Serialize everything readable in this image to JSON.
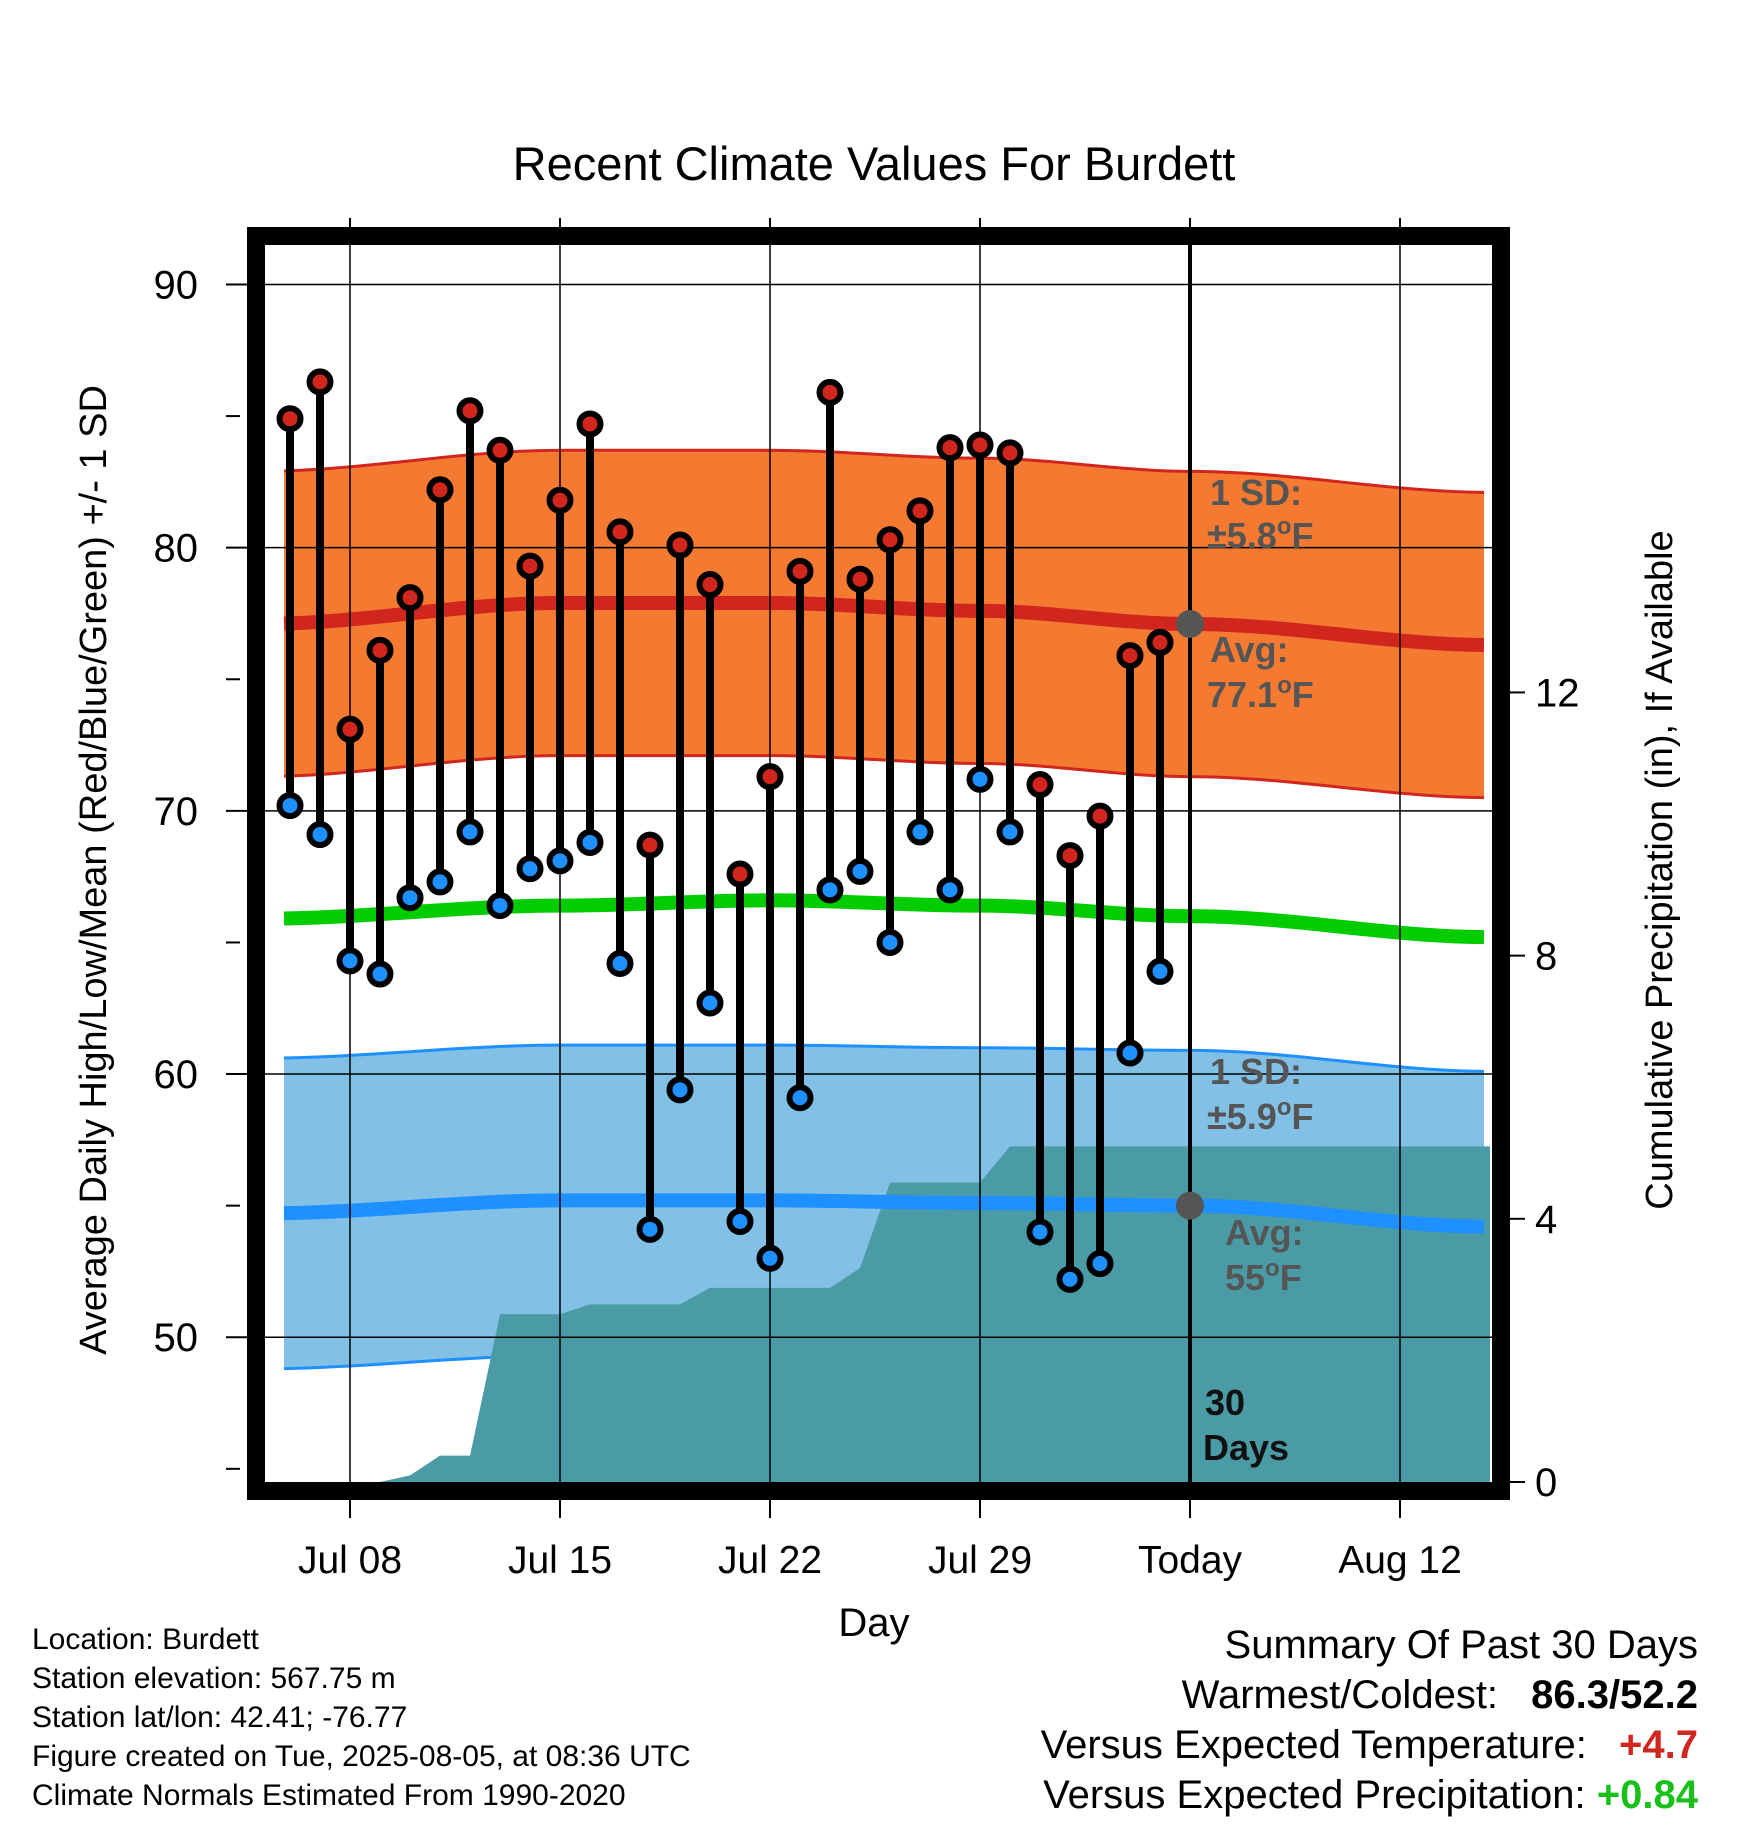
{
  "chart_data": {
    "type": "line",
    "title": "Recent Climate Values For Burdett",
    "xlabel": "Day",
    "ylabel": "Average Daily High/Low/Mean (Red/Blue/Green) +/- 1 SD",
    "y2label": "Cumulative Precipitation (in), If Available",
    "x_ticks": [
      "Jul 08",
      "Jul 15",
      "Jul 22",
      "Jul 29",
      "Today",
      "Aug 12"
    ],
    "x_range_days": [
      -30.2,
      10.0
    ],
    "x_tick_days": [
      -28,
      -21,
      -14,
      -7,
      0,
      7
    ],
    "ylim": [
      44.5,
      91.5
    ],
    "y_ticks": [
      50,
      60,
      70,
      80,
      90
    ],
    "y2lim": [
      0,
      18.8
    ],
    "y2_ticks": [
      0,
      4,
      8,
      12
    ],
    "grid": true,
    "today_marker": "30 Days",
    "series": [
      {
        "name": "High",
        "color": "#d0261e",
        "days": [
          -30,
          -29,
          -28,
          -27,
          -26,
          -25,
          -24,
          -23,
          -22,
          -21,
          -20,
          -19,
          -18,
          -17,
          -16,
          -15,
          -14,
          -13,
          -12,
          -11,
          -10,
          -9,
          -8,
          -7,
          -6,
          -5,
          -4,
          -3,
          -2,
          -1
        ],
        "values": [
          84.9,
          86.3,
          73.1,
          76.1,
          78.1,
          82.2,
          85.2,
          83.7,
          79.3,
          81.8,
          84.7,
          80.6,
          68.7,
          80.1,
          78.6,
          67.6,
          71.3,
          79.1,
          85.9,
          78.8,
          80.3,
          81.4,
          83.8,
          83.9,
          83.6,
          71.0,
          68.3,
          69.8,
          75.9,
          76.4
        ]
      },
      {
        "name": "Low",
        "color": "#1e90ff",
        "days": [
          -30,
          -29,
          -28,
          -27,
          -26,
          -25,
          -24,
          -23,
          -22,
          -21,
          -20,
          -19,
          -18,
          -17,
          -16,
          -15,
          -14,
          -13,
          -12,
          -11,
          -10,
          -9,
          -8,
          -7,
          -6,
          -5,
          -4,
          -3,
          -2,
          -1
        ],
        "values": [
          70.2,
          69.1,
          64.3,
          63.8,
          66.7,
          67.3,
          69.2,
          66.4,
          67.8,
          68.1,
          68.8,
          64.2,
          54.1,
          59.4,
          62.7,
          54.4,
          53.0,
          59.1,
          67.0,
          67.7,
          65.0,
          69.2,
          67.0,
          71.2,
          69.2,
          54.0,
          52.2,
          52.8,
          60.8,
          63.9
        ]
      },
      {
        "name": "Normal High",
        "color": "#d0261e",
        "days": [
          -31,
          -21,
          -14,
          -7,
          0,
          10
        ],
        "values": [
          77.1,
          77.9,
          77.9,
          77.6,
          77.1,
          76.3
        ],
        "sd": 5.8
      },
      {
        "name": "Normal Low",
        "color": "#1e90ff",
        "days": [
          -31,
          -21,
          -14,
          -7,
          0,
          10
        ],
        "values": [
          54.7,
          55.2,
          55.2,
          55.1,
          55.0,
          54.2
        ],
        "sd": 5.9
      },
      {
        "name": "Normal Mean",
        "color": "#00cc00",
        "days": [
          -31,
          -21,
          -14,
          -7,
          0,
          10
        ],
        "values": [
          65.9,
          66.4,
          66.6,
          66.4,
          66.0,
          65.2
        ]
      },
      {
        "name": "Cumulative Precipitation",
        "color": "#4a9ba6",
        "days": [
          -27,
          -26,
          -25,
          -24,
          -23,
          -22,
          -21,
          -20,
          -19,
          -18,
          -17,
          -16,
          -15,
          -14,
          -13,
          -12,
          -11,
          -10,
          -9,
          -8,
          -7,
          -6,
          -5,
          -4,
          -3,
          -2,
          -1,
          0,
          10
        ],
        "values": [
          0,
          0.1,
          0.4,
          0.4,
          2.55,
          2.55,
          2.55,
          2.7,
          2.7,
          2.7,
          2.7,
          2.95,
          2.95,
          2.95,
          2.95,
          2.95,
          3.25,
          4.55,
          4.55,
          4.55,
          4.55,
          5.1,
          5.1,
          5.1,
          5.1,
          5.1,
          5.1,
          5.1,
          5.1
        ]
      }
    ],
    "annotations": {
      "high_sd": "1 SD:",
      "high_sd_value": "±5.8°F",
      "high_avg": "Avg:",
      "high_avg_value": "77.1°F",
      "low_sd": "1 SD:",
      "low_sd_value": "±5.9°F",
      "low_avg": "Avg:",
      "low_avg_value": "55°F",
      "days_count": "30",
      "days_label": "Days"
    },
    "colors": {
      "high_band": "#f47a31",
      "low_band": "#82c0e6",
      "precip": "#4a9ba6",
      "annotation_text": "#555555"
    }
  },
  "footer": {
    "location": "Location: Burdett",
    "elevation": "Station elevation: 567.75 m",
    "latlon": "Station lat/lon: 42.41; -76.77",
    "created": "Figure created on Tue, 2025-08-05, at 08:36 UTC",
    "normals": "Climate Normals Estimated From 1990-2020"
  },
  "summary": {
    "title": "Summary Of Past 30 Days",
    "warmest_label": "Warmest/Coldest:",
    "warmest_value": "86.3/52.2",
    "temp_label": "Versus Expected Temperature:",
    "temp_value": "+4.7",
    "precip_label": "Versus Expected Precipitation:",
    "precip_value": "+0.84"
  }
}
